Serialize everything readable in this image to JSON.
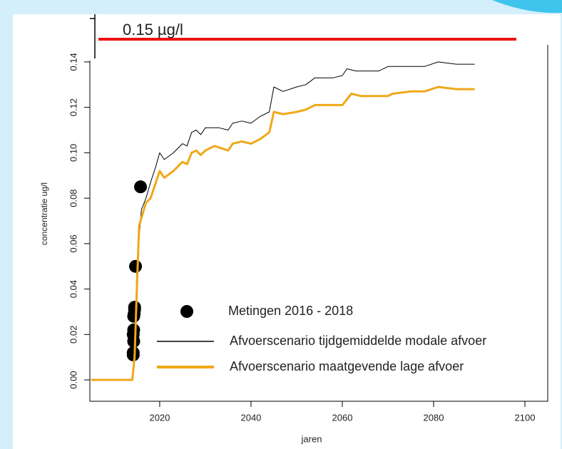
{
  "chart_data": {
    "type": "line",
    "xlabel": "jaren",
    "ylabel": "concentratie ug/l",
    "xlim": [
      2004.7,
      2105
    ],
    "ylim": [
      -0.0094,
      0.1475
    ],
    "xticks": [
      2020,
      2040,
      2060,
      2080,
      2100
    ],
    "yticks": [
      {
        "value": 0,
        "label": "0.00"
      },
      {
        "value": 0.02,
        "label": "0.02"
      },
      {
        "value": 0.04,
        "label": "0.04"
      },
      {
        "value": 0.06,
        "label": "0.06"
      },
      {
        "value": 0.08,
        "label": "0.08"
      },
      {
        "value": 0.1,
        "label": "0.10"
      },
      {
        "value": 0.12,
        "label": "0.12"
      },
      {
        "value": 0.14,
        "label": "0.14"
      }
    ],
    "reference_line": {
      "value": 0.15,
      "label": "0.15 µg/l",
      "color": "#ee1111"
    },
    "series": [
      {
        "name": "Metingen 2016 - 2018",
        "type": "scatter",
        "color": "#000000",
        "x": [
          2014.2,
          2014.2,
          2014.3,
          2014.2,
          2014.3,
          2014.3,
          2014.4,
          2014.5,
          2014.5,
          2014.7,
          2015.8
        ],
        "values": [
          0.011,
          0.012,
          0.017,
          0.02,
          0.022,
          0.028,
          0.029,
          0.031,
          0.032,
          0.05,
          0.085
        ]
      },
      {
        "name": "Afvoerscenario tijdgemiddelde modale afvoer",
        "type": "line",
        "color": "#000000",
        "x": [
          2005,
          2014,
          2014.5,
          2015,
          2016,
          2017,
          2018,
          2019,
          2020,
          2021,
          2023,
          2025,
          2026,
          2027,
          2028,
          2029,
          2030,
          2033,
          2035,
          2036,
          2038,
          2040,
          2042,
          2044,
          2045,
          2047,
          2050,
          2052,
          2054,
          2056,
          2058,
          2060,
          2061,
          2063,
          2068,
          2070,
          2075,
          2078,
          2081,
          2085,
          2089
        ],
        "values": [
          0,
          0,
          0.01,
          0.05,
          0.075,
          0.08,
          0.087,
          0.093,
          0.1,
          0.097,
          0.1,
          0.104,
          0.103,
          0.109,
          0.11,
          0.108,
          0.111,
          0.111,
          0.11,
          0.113,
          0.114,
          0.113,
          0.116,
          0.118,
          0.129,
          0.127,
          0.129,
          0.13,
          0.133,
          0.133,
          0.133,
          0.134,
          0.137,
          0.136,
          0.136,
          0.138,
          0.138,
          0.138,
          0.14,
          0.139,
          0.139
        ]
      },
      {
        "name": "Afvoerscenario maatgevende lage afvoer",
        "type": "line",
        "color": "#f0a818",
        "x": [
          2005,
          2014,
          2014.5,
          2015,
          2015.5,
          2017,
          2018,
          2019,
          2020,
          2021,
          2023,
          2025,
          2026,
          2027,
          2028,
          2029,
          2030,
          2032,
          2035,
          2036,
          2038,
          2040,
          2042,
          2044,
          2045,
          2047,
          2050,
          2052,
          2054,
          2060,
          2062,
          2064,
          2070,
          2071,
          2075,
          2078,
          2081,
          2085,
          2089
        ],
        "values": [
          0,
          0,
          0.01,
          0.04,
          0.068,
          0.078,
          0.08,
          0.086,
          0.092,
          0.089,
          0.092,
          0.096,
          0.095,
          0.1,
          0.101,
          0.099,
          0.101,
          0.103,
          0.101,
          0.104,
          0.105,
          0.104,
          0.106,
          0.109,
          0.118,
          0.117,
          0.118,
          0.119,
          0.121,
          0.121,
          0.126,
          0.125,
          0.125,
          0.126,
          0.127,
          0.127,
          0.129,
          0.128,
          0.128
        ]
      }
    ]
  }
}
